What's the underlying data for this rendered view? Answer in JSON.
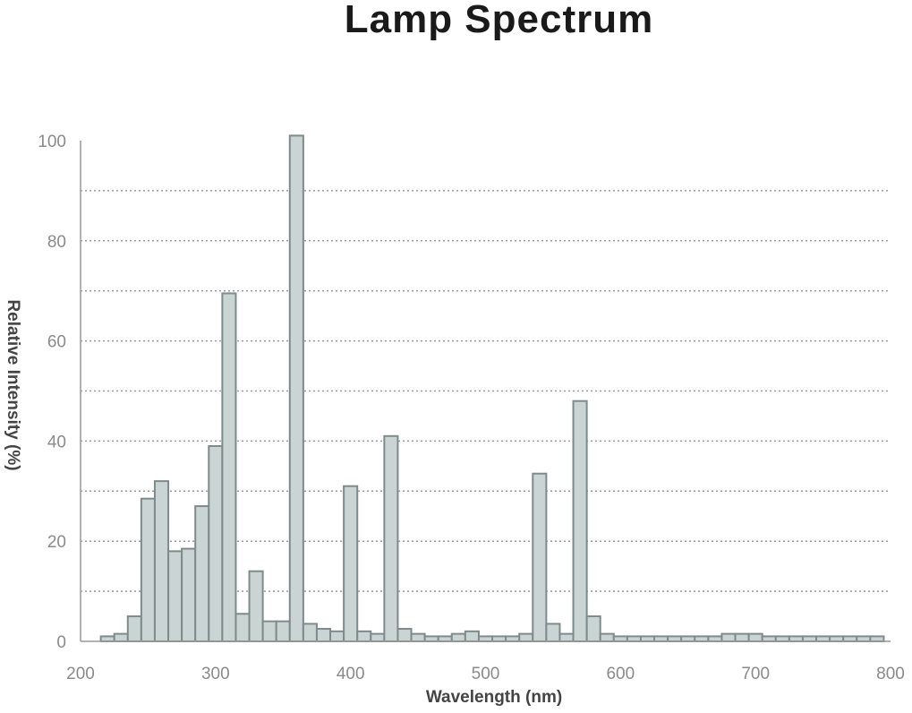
{
  "chart_data": {
    "type": "bar",
    "title": "Lamp Spectrum",
    "xlabel": "Wavelength (nm)",
    "ylabel": "Relative Intensity (%)",
    "xlim": [
      200,
      800
    ],
    "ylim": [
      0,
      100
    ],
    "x_ticks": [
      "200",
      "300",
      "400",
      "500",
      "600",
      "700",
      "800"
    ],
    "y_ticks": [
      "0",
      "20",
      "40",
      "60",
      "80",
      "100"
    ],
    "grid": true,
    "bin_width": 10,
    "x": [
      220,
      230,
      240,
      250,
      260,
      270,
      280,
      290,
      300,
      310,
      320,
      330,
      340,
      350,
      360,
      370,
      380,
      390,
      400,
      410,
      420,
      430,
      440,
      450,
      460,
      470,
      480,
      490,
      500,
      510,
      520,
      530,
      540,
      550,
      560,
      570,
      580,
      590,
      600,
      610,
      620,
      630,
      640,
      650,
      660,
      670,
      680,
      690,
      700,
      710,
      720,
      730,
      740,
      750,
      760,
      770,
      780,
      790
    ],
    "values": [
      1,
      1.5,
      5,
      28.5,
      32,
      18,
      18.5,
      27,
      39,
      69.5,
      5.5,
      14,
      4,
      4,
      101,
      3.5,
      2.5,
      2,
      31,
      2,
      1.5,
      41,
      2.5,
      1.5,
      1,
      1,
      1.5,
      2,
      1,
      1,
      1,
      1.5,
      33.5,
      3.5,
      1.5,
      48,
      5,
      1.5,
      1,
      1,
      1,
      1,
      1,
      1,
      1,
      1,
      1.5,
      1.5,
      1.5,
      1,
      1,
      1,
      1,
      1,
      1,
      1,
      1,
      1
    ],
    "colors": {
      "bar_fill": "#c9d4d3",
      "bar_stroke": "#7e8b8c",
      "grid": "#9a9a9a",
      "axis": "#999999",
      "tick_text": "#8a8a8a",
      "title": "#1a1a1a"
    }
  }
}
